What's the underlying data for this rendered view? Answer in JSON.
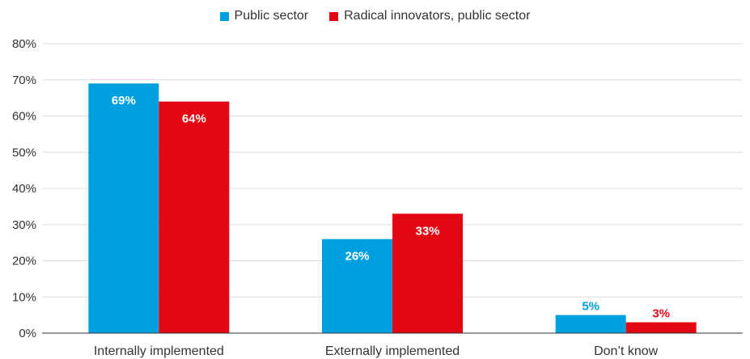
{
  "chart_data": {
    "type": "bar",
    "title": "",
    "xlabel": "",
    "ylabel": "",
    "categories": [
      "Internally implemented",
      "Externally implemented",
      "Don’t know"
    ],
    "series": [
      {
        "name": "Public sector",
        "values": [
          69,
          26,
          5
        ],
        "labels": [
          "69%",
          "26%",
          "5%"
        ],
        "color": "#00A0E0"
      },
      {
        "name": "Radical innovators, public sector",
        "values": [
          64,
          33,
          3
        ],
        "labels": [
          "64%",
          "33%",
          "3%"
        ],
        "color": "#E30613"
      }
    ],
    "ylim": [
      0,
      80
    ],
    "yticks": [
      0,
      10,
      20,
      30,
      40,
      50,
      60,
      70,
      80
    ],
    "ytick_labels": [
      "0%",
      "10%",
      "20%",
      "30%",
      "40%",
      "50%",
      "60%",
      "70%",
      "80%"
    ],
    "grid": true,
    "legend_position": "top-center"
  }
}
